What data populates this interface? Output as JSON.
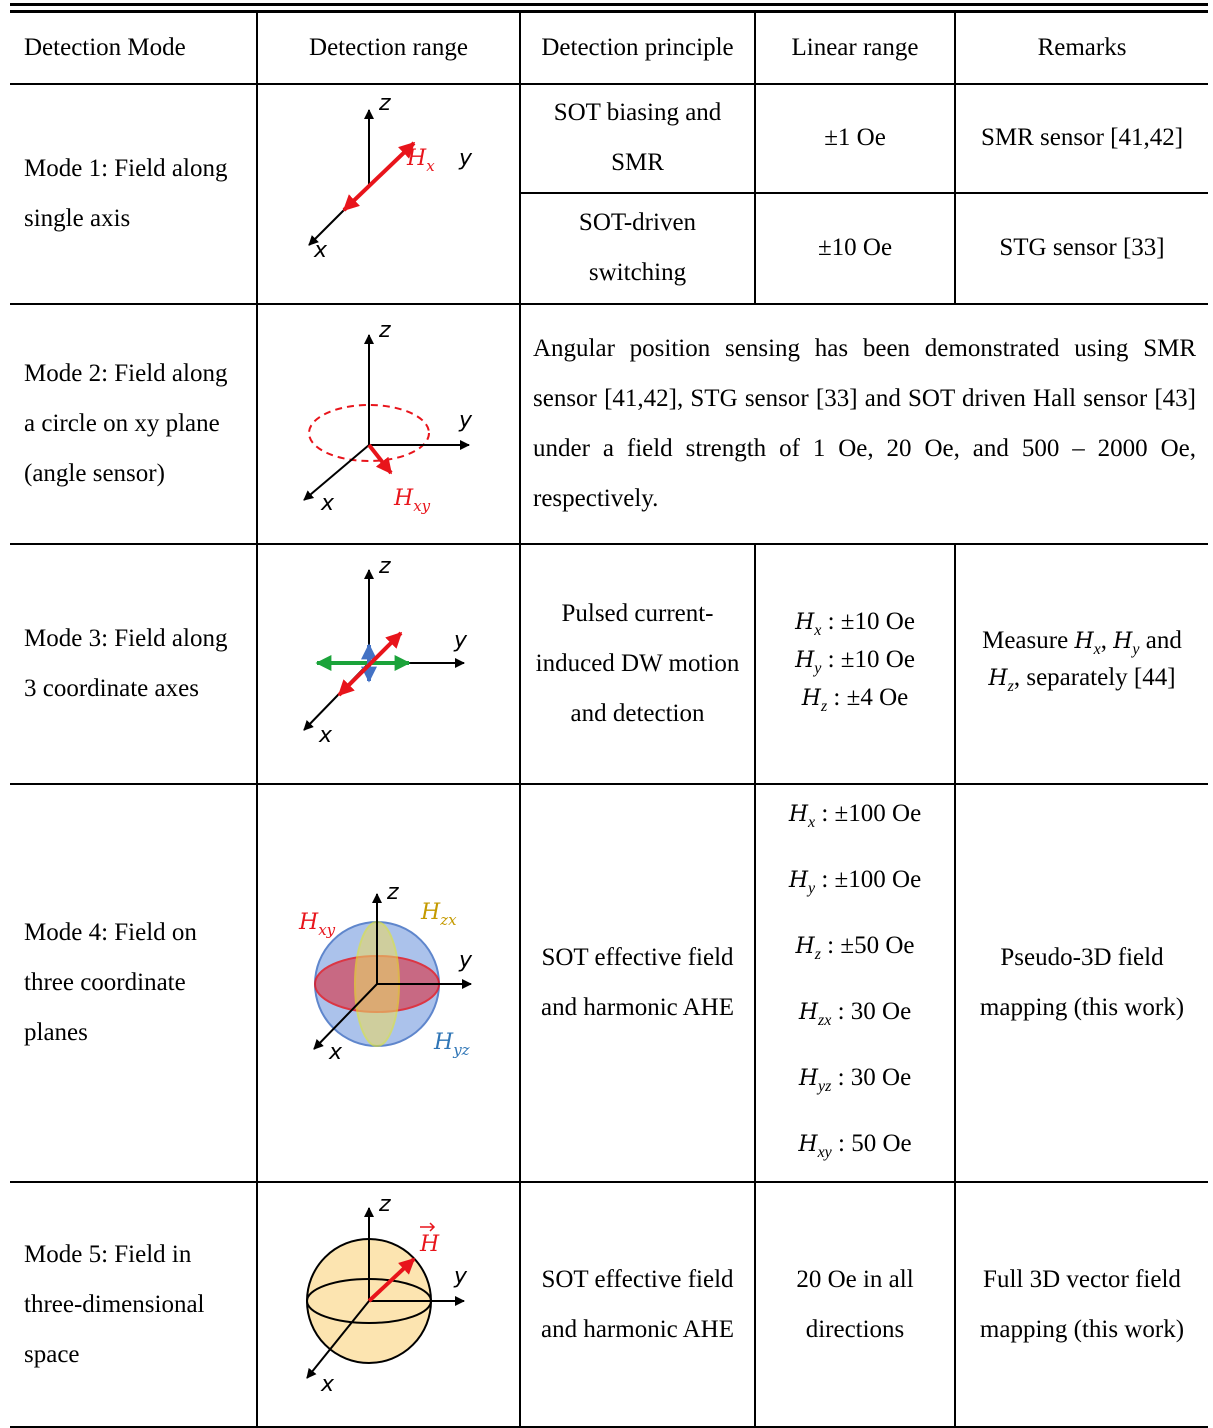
{
  "table": {
    "headers": [
      "Detection Mode",
      "Detection range",
      "Detection principle",
      "Linear range",
      "Remarks"
    ],
    "rows": [
      {
        "mode": "Mode 1: Field along single axis",
        "axes": [
          "z",
          "y",
          "x"
        ],
        "field": {
          "symbol": "H",
          "sub": "x"
        },
        "entries": [
          {
            "principle": "SOT biasing and SMR",
            "linear": "±1 Oe",
            "remarks": "SMR sensor [41,42]"
          },
          {
            "principle": "SOT-driven switching",
            "linear": "±10 Oe",
            "remarks": "STG sensor [33]"
          }
        ]
      },
      {
        "mode": "Mode 2: Field along a circle on xy plane (angle sensor)",
        "axes": [
          "z",
          "y",
          "x"
        ],
        "field": {
          "symbol": "H",
          "sub": "xy"
        },
        "note": "Angular position sensing has been demonstrated using SMR sensor [41,42], STG sensor [33] and SOT driven Hall sensor [43] under a field strength of 1 Oe, 20 Oe, and 500 – 2000 Oe, respectively."
      },
      {
        "mode": "Mode 3: Field along 3 coordinate axes",
        "axes": [
          "z",
          "y",
          "x"
        ],
        "principle": "Pulsed current-induced DW motion and detection",
        "linear": [
          {
            "symbol": "H",
            "sub": "x",
            "range": " : ±10 Oe"
          },
          {
            "symbol": "H",
            "sub": "y",
            "range": " : ±10 Oe"
          },
          {
            "symbol": "H",
            "sub": "z",
            "range": " : ±4 Oe"
          }
        ],
        "remarks": [
          "Measure ",
          {
            "symbol": "H",
            "sub": "x"
          },
          ", ",
          {
            "symbol": "H",
            "sub": "y"
          },
          " and ",
          {
            "symbol": "H",
            "sub": "z"
          },
          ", separately [44]"
        ]
      },
      {
        "mode": "Mode 4: Field on three coordinate planes",
        "axes": [
          "z",
          "y",
          "x"
        ],
        "fields": [
          {
            "symbol": "H",
            "sub": "xy"
          },
          {
            "symbol": "H",
            "sub": "zx"
          },
          {
            "symbol": "H",
            "sub": "yz"
          }
        ],
        "principle": "SOT effective field and harmonic AHE",
        "linear": [
          {
            "symbol": "H",
            "sub": "x",
            "range": " : ±100 Oe"
          },
          {
            "symbol": "H",
            "sub": "y",
            "range": " : ±100 Oe"
          },
          {
            "symbol": "H",
            "sub": "z",
            "range": " : ±50 Oe"
          },
          {
            "symbol": "H",
            "sub": "zx",
            "range": " : 30 Oe"
          },
          {
            "symbol": "H",
            "sub": "yz",
            "range": " : 30 Oe"
          },
          {
            "symbol": "H",
            "sub": "xy",
            "range": " : 50 Oe"
          }
        ],
        "remarks": "Pseudo-3D field mapping (this work)"
      },
      {
        "mode": "Mode 5: Field in three-dimensional space",
        "axes": [
          "z",
          "y",
          "x"
        ],
        "field": {
          "symbol": "H"
        },
        "principle": "SOT effective field and harmonic AHE",
        "linear": "20 Oe in all directions",
        "remarks": "Full 3D vector field mapping (this work)"
      }
    ]
  }
}
